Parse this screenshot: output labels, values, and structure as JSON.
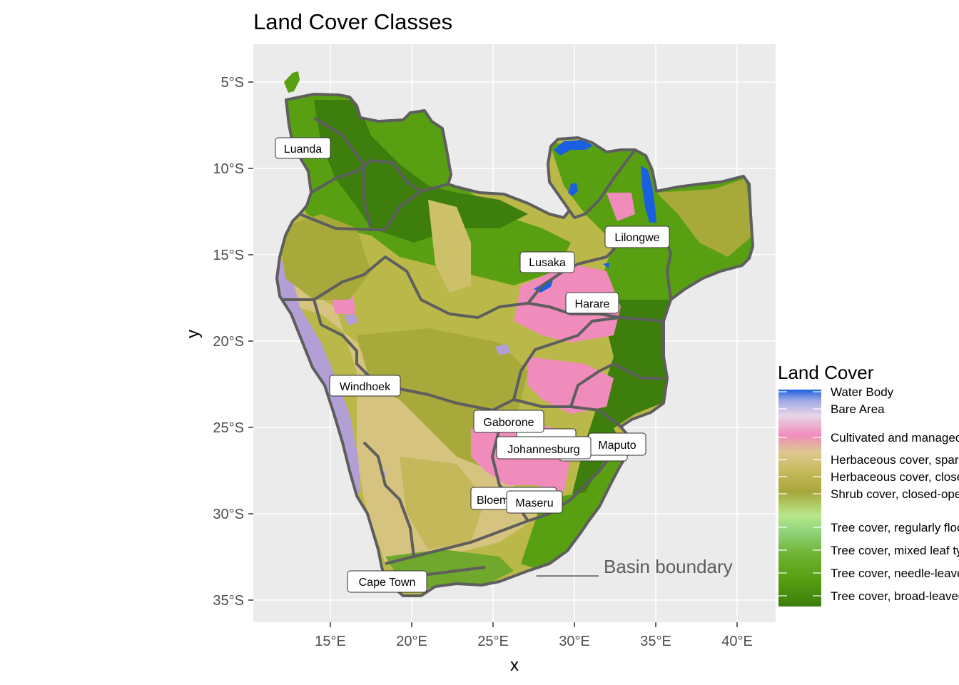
{
  "title": "Land Cover Classes",
  "axes": {
    "x_title": "x",
    "y_title": "y",
    "x_ticks": [
      "15°E",
      "20°E",
      "25°E",
      "30°E",
      "35°E",
      "40°E"
    ],
    "y_ticks": [
      "5°S",
      "10°S",
      "15°S",
      "20°S",
      "25°S",
      "30°S",
      "35°S"
    ]
  },
  "cities": [
    "Luanda",
    "Lilongwe",
    "Lusaka",
    "Harare",
    "Windhoek",
    "Gaborone",
    "Johannesburg",
    "Maputo",
    "Bloemfontein",
    "Maseru",
    "Cape Town"
  ],
  "annotation": "______ Basin boundary",
  "legend": {
    "title": "Land Cover",
    "classes": [
      "Water Body",
      "Bare Area",
      "Cultivated and managed",
      "Herbaceous cover, sparse",
      "Herbaceous cover, closed-open",
      "Shrub cover, closed-open",
      "Tree cover, regularly flooded",
      "Tree cover, mixed leaf type",
      "Tree cover, needle-leaved",
      "Tree cover, broad-leaved"
    ]
  },
  "colors": {
    "panel": "#ebebeb",
    "grid": "#ffffff",
    "boundary": "#5e5e5e",
    "water": "#1a5fe0",
    "bare_area": "#b19fd6",
    "sparse_grass": "#d6c37f",
    "cultivated": "#f08cbb",
    "herbaceous": "#bbb84a",
    "shrub": "#a7a93b",
    "tree_flooded": "#8fd27a",
    "tree_mixed": "#6fa82c",
    "tree_needle": "#58a012",
    "tree_broad": "#3d7e0c"
  }
}
